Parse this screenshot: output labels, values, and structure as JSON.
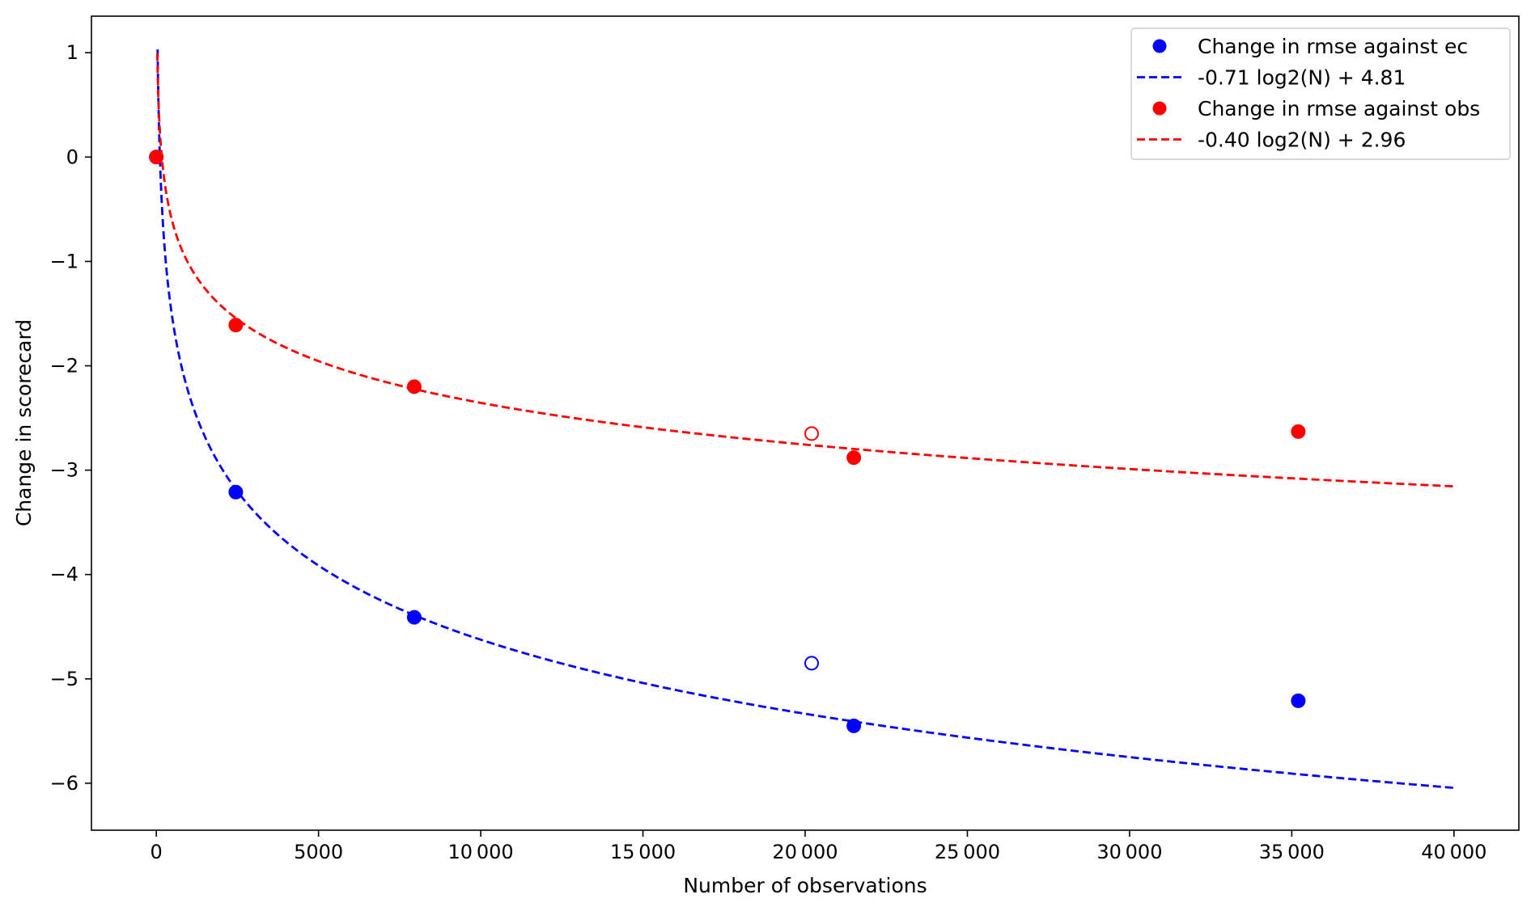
{
  "chart_data": {
    "type": "scatter",
    "xlabel": "Number of observations",
    "ylabel": "Change in scorecard",
    "xlim": [
      -2000,
      42000
    ],
    "ylim": [
      -6.45,
      1.35
    ],
    "xticks": [
      0,
      5000,
      10000,
      15000,
      20000,
      25000,
      30000,
      35000,
      40000
    ],
    "xtick_labels": [
      "0",
      "5000",
      "10 000",
      "15 000",
      "20 000",
      "25 000",
      "30 000",
      "35 000",
      "40 000"
    ],
    "yticks": [
      1,
      0,
      -1,
      -2,
      -3,
      -4,
      -5,
      -6
    ],
    "ytick_labels": [
      "1",
      "0",
      "−1",
      "−2",
      "−3",
      "−4",
      "−5",
      "−6"
    ],
    "grid": false,
    "legend_position": "top-right",
    "series": [
      {
        "name": "Change in rmse against ec",
        "kind": "points",
        "color": "#0000ff",
        "points": [
          [
            0,
            0.0
          ],
          [
            2450,
            -3.21
          ],
          [
            7950,
            -4.41
          ],
          [
            21500,
            -5.45
          ],
          [
            35200,
            -5.21
          ]
        ],
        "hollow_points": [
          [
            20200,
            -4.85
          ]
        ]
      },
      {
        "name": "-0.71 log2(N) + 4.81",
        "kind": "fit",
        "color": "#0000ff",
        "a": -0.71,
        "b": 4.81
      },
      {
        "name": "Change in rmse against obs",
        "kind": "points",
        "color": "#ff0000",
        "points": [
          [
            0,
            0.0
          ],
          [
            2450,
            -1.61
          ],
          [
            7950,
            -2.2
          ],
          [
            21500,
            -2.88
          ],
          [
            35200,
            -2.63
          ]
        ],
        "hollow_points": [
          [
            20200,
            -2.65
          ]
        ]
      },
      {
        "name": "-0.40 log2(N) + 2.96",
        "kind": "fit",
        "color": "#ff0000",
        "a": -0.4,
        "b": 2.96
      }
    ]
  }
}
